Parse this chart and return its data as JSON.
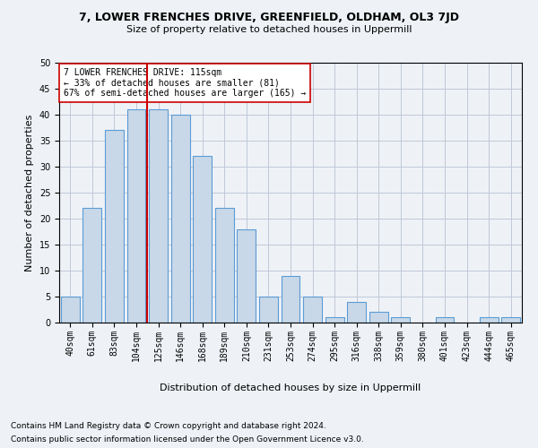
{
  "title": "7, LOWER FRENCHES DRIVE, GREENFIELD, OLDHAM, OL3 7JD",
  "subtitle": "Size of property relative to detached houses in Uppermill",
  "xlabel": "Distribution of detached houses by size in Uppermill",
  "ylabel": "Number of detached properties",
  "bar_color": "#c8d8e8",
  "bar_edge_color": "#5b9bd5",
  "annotation_line_color": "#cc0000",
  "annotation_text_line1": "7 LOWER FRENCHES DRIVE: 115sqm",
  "annotation_text_line2": "← 33% of detached houses are smaller (81)",
  "annotation_text_line3": "67% of semi-detached houses are larger (165) →",
  "footnote1": "Contains HM Land Registry data © Crown copyright and database right 2024.",
  "footnote2": "Contains public sector information licensed under the Open Government Licence v3.0.",
  "categories": [
    "40sqm",
    "61sqm",
    "83sqm",
    "104sqm",
    "125sqm",
    "146sqm",
    "168sqm",
    "189sqm",
    "210sqm",
    "231sqm",
    "253sqm",
    "274sqm",
    "295sqm",
    "316sqm",
    "338sqm",
    "359sqm",
    "380sqm",
    "401sqm",
    "423sqm",
    "444sqm",
    "465sqm"
  ],
  "values": [
    5,
    22,
    37,
    41,
    41,
    40,
    32,
    22,
    18,
    5,
    9,
    5,
    1,
    4,
    2,
    1,
    0,
    1,
    0,
    1,
    1
  ],
  "ylim": [
    0,
    50
  ],
  "yticks": [
    0,
    5,
    10,
    15,
    20,
    25,
    30,
    35,
    40,
    45,
    50
  ],
  "property_bin_index": 4,
  "background_color": "#eef2f7",
  "plot_bg_color": "#eef2f7",
  "grid_color": "#c0c8d8"
}
